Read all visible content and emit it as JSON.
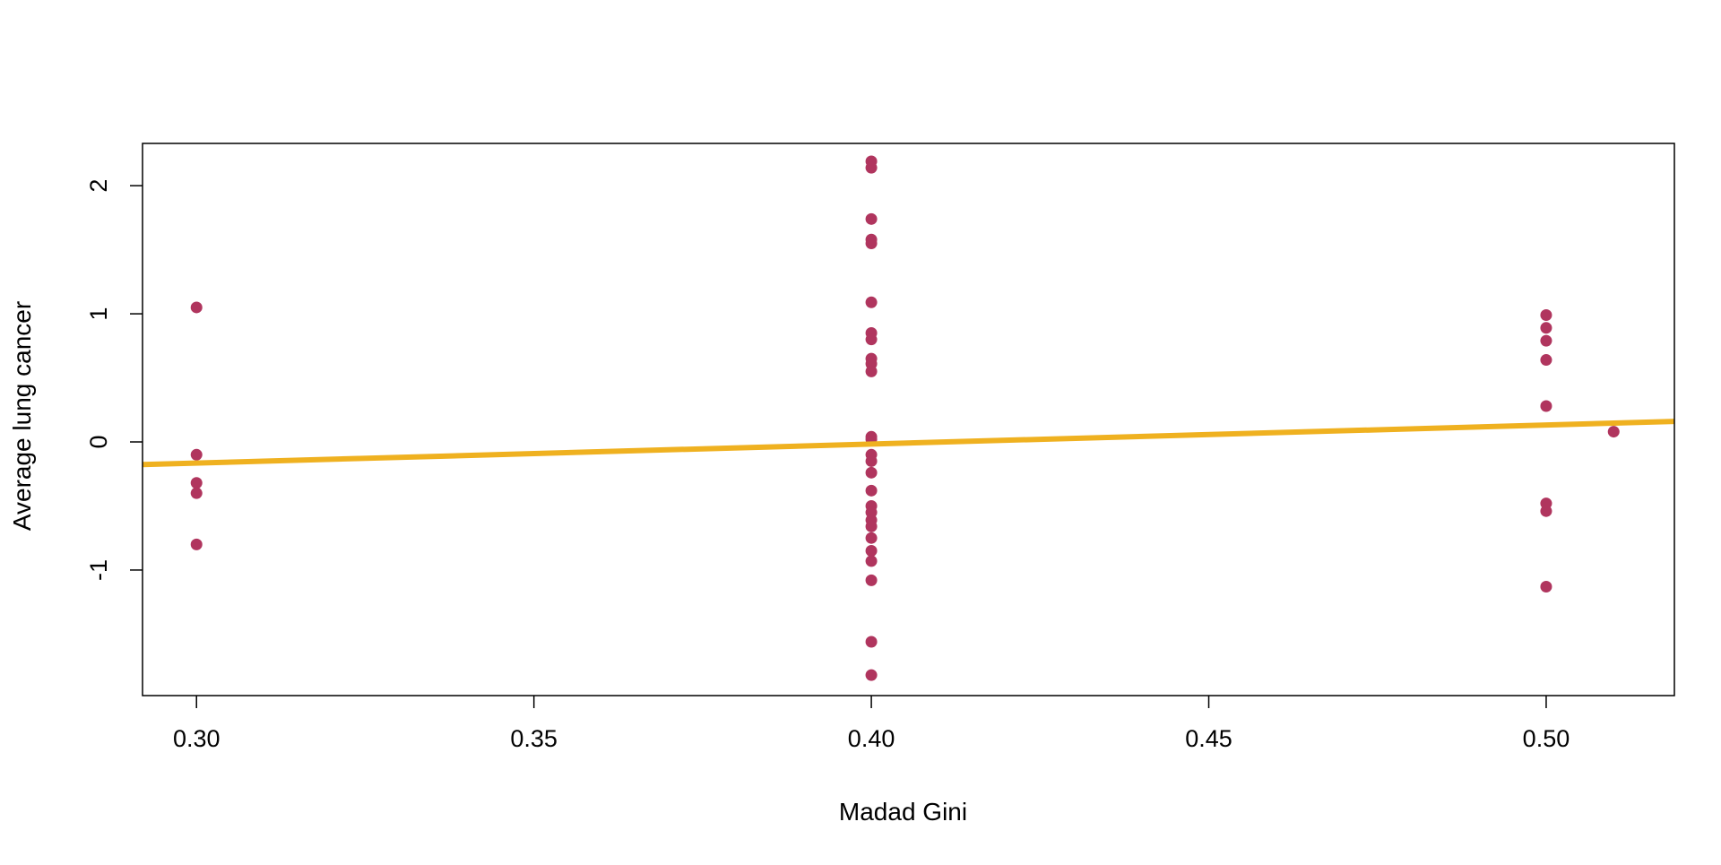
{
  "chart_data": {
    "type": "scatter",
    "title": "",
    "xlabel": "Madad Gini",
    "ylabel": "Average lung cancer",
    "xlim": [
      0.292,
      0.519
    ],
    "ylim": [
      -1.98,
      2.33
    ],
    "x_ticks": [
      0.3,
      0.35,
      0.4,
      0.45,
      0.5
    ],
    "x_tick_labels": [
      "0.30",
      "0.35",
      "0.40",
      "0.45",
      "0.50"
    ],
    "y_ticks": [
      -1,
      0,
      1,
      2
    ],
    "y_tick_labels": [
      "-1",
      "0",
      "1",
      "2"
    ],
    "grid": false,
    "legend": "none",
    "point_color": "#B0355E",
    "line_color": "#EFB120",
    "points": [
      {
        "x": 0.3,
        "y": 1.05
      },
      {
        "x": 0.3,
        "y": -0.1
      },
      {
        "x": 0.3,
        "y": -0.32
      },
      {
        "x": 0.3,
        "y": -0.4
      },
      {
        "x": 0.3,
        "y": -0.8
      },
      {
        "x": 0.4,
        "y": 2.19
      },
      {
        "x": 0.4,
        "y": 2.14
      },
      {
        "x": 0.4,
        "y": 1.74
      },
      {
        "x": 0.4,
        "y": 1.58
      },
      {
        "x": 0.4,
        "y": 1.55
      },
      {
        "x": 0.4,
        "y": 1.09
      },
      {
        "x": 0.4,
        "y": 0.85
      },
      {
        "x": 0.4,
        "y": 0.8
      },
      {
        "x": 0.4,
        "y": 0.65
      },
      {
        "x": 0.4,
        "y": 0.61
      },
      {
        "x": 0.4,
        "y": 0.55
      },
      {
        "x": 0.4,
        "y": 0.04
      },
      {
        "x": 0.4,
        "y": 0.02
      },
      {
        "x": 0.4,
        "y": -0.1
      },
      {
        "x": 0.4,
        "y": -0.15
      },
      {
        "x": 0.4,
        "y": -0.24
      },
      {
        "x": 0.4,
        "y": -0.38
      },
      {
        "x": 0.4,
        "y": -0.5
      },
      {
        "x": 0.4,
        "y": -0.55
      },
      {
        "x": 0.4,
        "y": -0.61
      },
      {
        "x": 0.4,
        "y": -0.66
      },
      {
        "x": 0.4,
        "y": -0.75
      },
      {
        "x": 0.4,
        "y": -0.85
      },
      {
        "x": 0.4,
        "y": -0.93
      },
      {
        "x": 0.4,
        "y": -1.08
      },
      {
        "x": 0.4,
        "y": -1.56
      },
      {
        "x": 0.4,
        "y": -1.82
      },
      {
        "x": 0.5,
        "y": 0.99
      },
      {
        "x": 0.5,
        "y": 0.89
      },
      {
        "x": 0.5,
        "y": 0.79
      },
      {
        "x": 0.5,
        "y": 0.64
      },
      {
        "x": 0.5,
        "y": 0.28
      },
      {
        "x": 0.5,
        "y": -0.48
      },
      {
        "x": 0.5,
        "y": -0.54
      },
      {
        "x": 0.5,
        "y": -1.13
      },
      {
        "x": 0.51,
        "y": 0.08
      }
    ],
    "fit_line": {
      "x": [
        0.292,
        0.519
      ],
      "y": [
        -0.177,
        0.16
      ]
    }
  }
}
